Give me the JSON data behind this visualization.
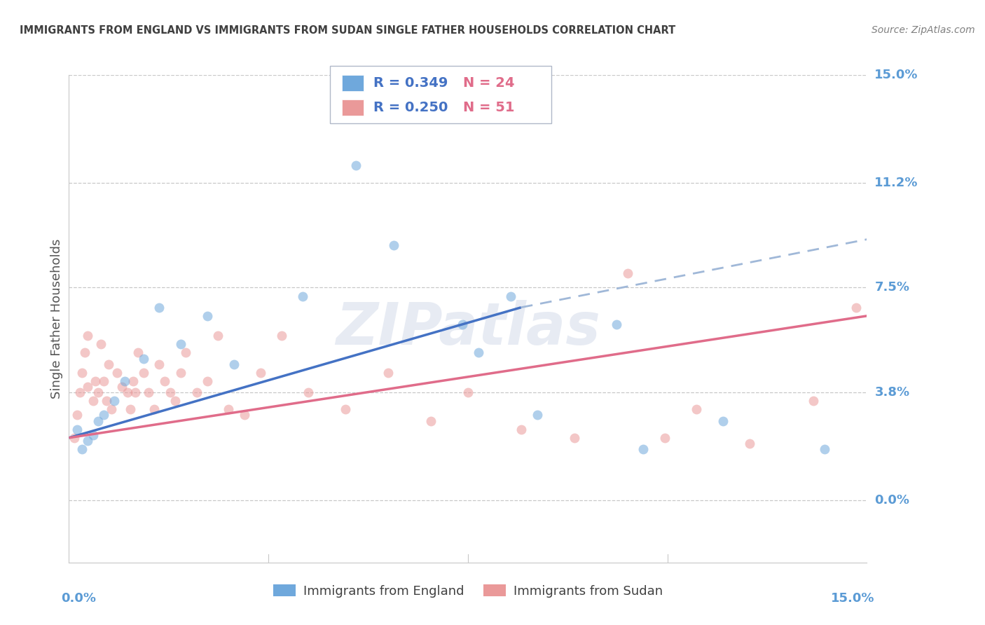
{
  "title": "IMMIGRANTS FROM ENGLAND VS IMMIGRANTS FROM SUDAN SINGLE FATHER HOUSEHOLDS CORRELATION CHART",
  "source": "Source: ZipAtlas.com",
  "ylabel": "Single Father Households",
  "ytick_labels": [
    "15.0%",
    "11.2%",
    "7.5%",
    "3.8%",
    "0.0%"
  ],
  "ytick_values": [
    15.0,
    11.2,
    7.5,
    3.8,
    0.0
  ],
  "xtick_values": [
    0.0,
    3.75,
    7.5,
    11.25,
    15.0
  ],
  "xmin": 0.0,
  "xmax": 15.0,
  "ymin": -2.2,
  "ymax": 15.0,
  "england_color": "#6fa8dc",
  "sudan_color": "#ea9999",
  "trendline_england_color": "#4472c4",
  "trendline_sudan_color": "#e06c8a",
  "trendline_england_ext_color": "#a0b8d8",
  "axis_label_color": "#5b9bd5",
  "title_color": "#404040",
  "source_color": "#808080",
  "legend_R_color": "#4472c4",
  "legend_N_color": "#e06c8a",
  "background_color": "#ffffff",
  "grid_color": "#c8c8c8",
  "england_x": [
    0.15,
    0.25,
    0.35,
    0.45,
    0.55,
    0.65,
    0.85,
    1.05,
    1.4,
    1.7,
    2.1,
    2.6,
    3.1,
    4.4,
    5.4,
    6.1,
    7.4,
    7.7,
    8.3,
    8.8,
    10.3,
    10.8,
    14.2,
    12.3
  ],
  "england_y": [
    2.5,
    1.8,
    2.1,
    2.3,
    2.8,
    3.0,
    3.5,
    4.2,
    5.0,
    6.8,
    5.5,
    6.5,
    4.8,
    7.2,
    11.8,
    9.0,
    6.2,
    5.2,
    7.2,
    3.0,
    6.2,
    1.8,
    1.8,
    2.8
  ],
  "sudan_x": [
    0.1,
    0.15,
    0.2,
    0.25,
    0.3,
    0.35,
    0.35,
    0.45,
    0.5,
    0.55,
    0.6,
    0.65,
    0.7,
    0.75,
    0.8,
    0.9,
    1.0,
    1.1,
    1.15,
    1.2,
    1.25,
    1.3,
    1.4,
    1.5,
    1.6,
    1.7,
    1.8,
    1.9,
    2.0,
    2.1,
    2.2,
    2.4,
    2.6,
    2.8,
    3.0,
    3.3,
    3.6,
    4.0,
    4.5,
    5.2,
    6.0,
    6.8,
    7.5,
    8.5,
    9.5,
    10.5,
    11.2,
    11.8,
    12.8,
    14.0,
    14.8
  ],
  "sudan_y": [
    2.2,
    3.0,
    3.8,
    4.5,
    5.2,
    4.0,
    5.8,
    3.5,
    4.2,
    3.8,
    5.5,
    4.2,
    3.5,
    4.8,
    3.2,
    4.5,
    4.0,
    3.8,
    3.2,
    4.2,
    3.8,
    5.2,
    4.5,
    3.8,
    3.2,
    4.8,
    4.2,
    3.8,
    3.5,
    4.5,
    5.2,
    3.8,
    4.2,
    5.8,
    3.2,
    3.0,
    4.5,
    5.8,
    3.8,
    3.2,
    4.5,
    2.8,
    3.8,
    2.5,
    2.2,
    8.0,
    2.2,
    3.2,
    2.0,
    3.5,
    6.8
  ],
  "eng_trend_x0": 0.0,
  "eng_trend_y0": 2.2,
  "eng_trend_x1": 8.5,
  "eng_trend_y1": 6.8,
  "eng_trend_x2": 15.0,
  "eng_trend_y2": 9.2,
  "sud_trend_x0": 0.0,
  "sud_trend_y0": 2.2,
  "sud_trend_x1": 15.0,
  "sud_trend_y1": 6.5,
  "watermark": "ZIPatlas",
  "legend_box_color_england": "#6fa8dc",
  "legend_box_color_sudan": "#ea9999",
  "legend_england_text_R": "R = 0.349",
  "legend_england_text_N": "N = 24",
  "legend_sudan_text_R": "R = 0.250",
  "legend_sudan_text_N": "N = 51",
  "marker_size": 100,
  "marker_alpha": 0.55
}
